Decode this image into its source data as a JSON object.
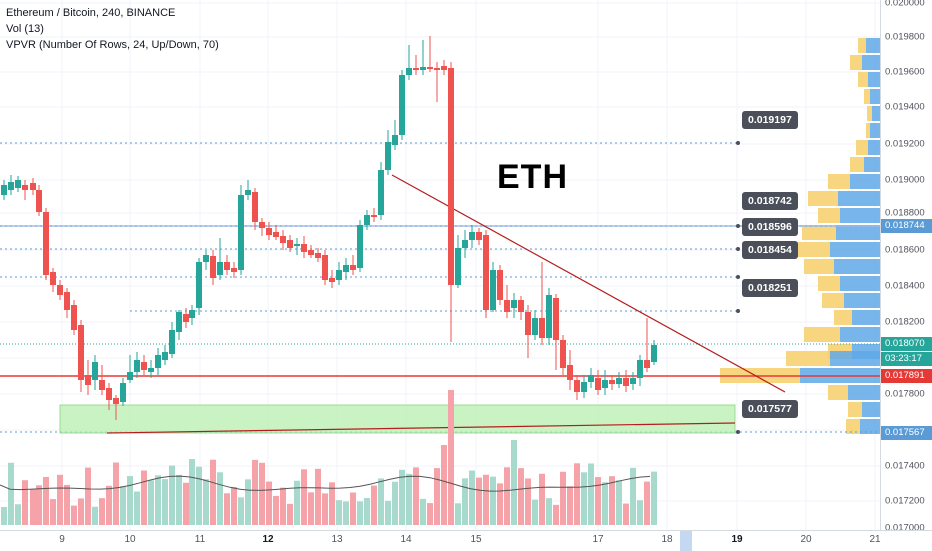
{
  "legend": {
    "title": "Ethereum / Bitcoin, 240, BINANCE",
    "vol": "Vol (13)",
    "vpvr": "VPVR (Number Of Rows, 24, Up/Down, 70)"
  },
  "annotation_text": "ETH",
  "colors": {
    "up": "#26a69a",
    "down": "#ef5350",
    "vol_up": "#a7d9cc",
    "vol_down": "#f5a3a8",
    "vp_up": "#5fa8e8",
    "vp_down": "#f7cf6a",
    "current_price": "#2196f3",
    "support_line": "#e53935",
    "trend_line": "#b71c1c",
    "zone": "#b8f0b0",
    "callout": "#4a4f59"
  },
  "price_axis": {
    "labels": [
      "0.020000",
      "0.019800",
      "0.019600",
      "0.019400",
      "0.019200",
      "0.019000",
      "0.018800",
      "0.018600",
      "0.018400",
      "0.018200",
      "0.017800",
      "0.017400",
      "0.017200",
      "0.017000"
    ],
    "tags": [
      {
        "text": "0.018744",
        "color": "#5b9bd5"
      },
      {
        "text": "0.018070",
        "color": "#26a69a"
      },
      {
        "text": "03:23:17",
        "color": "#26a69a"
      },
      {
        "text": "0.017891",
        "color": "#e53935"
      },
      {
        "text": "0.017567",
        "color": "#5b9bd5"
      }
    ]
  },
  "time_axis": {
    "labels": [
      {
        "text": "9",
        "bold": false
      },
      {
        "text": "10",
        "bold": false
      },
      {
        "text": "11",
        "bold": false
      },
      {
        "text": "12",
        "bold": true
      },
      {
        "text": "13",
        "bold": false
      },
      {
        "text": "14",
        "bold": false
      },
      {
        "text": "15",
        "bold": false
      },
      {
        "text": "17",
        "bold": false
      },
      {
        "text": "18",
        "bold": false
      },
      {
        "text": "19",
        "bold": true
      },
      {
        "text": "20",
        "bold": false
      },
      {
        "text": "21",
        "bold": false
      }
    ]
  },
  "callouts": [
    "0.019197",
    "0.018742",
    "0.018596",
    "0.018454",
    "0.018251",
    "0.017577"
  ]
}
